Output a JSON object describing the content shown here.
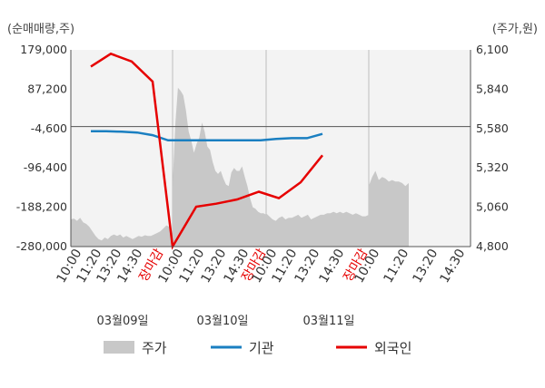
{
  "chart_data": {
    "type": "line",
    "left_axis_unit": "(순매매량,주)",
    "right_axis_unit": "(주가,원)",
    "left_ticks": [
      "179,000",
      "87,200",
      "-4,600",
      "-96,400",
      "-188,200",
      "-280,000"
    ],
    "right_ticks": [
      "6,100",
      "5,840",
      "5,580",
      "5,320",
      "5,060",
      "4,800"
    ],
    "left_range": [
      -280000,
      179000
    ],
    "right_range": [
      4800,
      6100
    ],
    "x_ticks": [
      "10:00",
      "11:20",
      "13:20",
      "14:30",
      "장마감",
      "10:00",
      "11:20",
      "13:20",
      "14:30",
      "장마감",
      "10:00",
      "11:20",
      "13:20",
      "14:30",
      "장마감",
      "10:00",
      "11:20",
      "13:20",
      "14:30"
    ],
    "day_labels": [
      "03월09일",
      "03월10일",
      "03월11일"
    ],
    "series": [
      {
        "name": "주가",
        "kind": "area",
        "axis": "right",
        "color": "#c8c8c8",
        "values": [
          4980,
          4985,
          4970,
          4990,
          4960,
          4950,
          4930,
          4900,
          4870,
          4850,
          4840,
          4860,
          4850,
          4870,
          4880,
          4870,
          4880,
          4860,
          4870,
          4860,
          4850,
          4860,
          4870,
          4865,
          4875,
          4870,
          4870,
          4880,
          4890,
          4900,
          4920,
          4940,
          4930,
          4850,
          5200,
          5600,
          5850,
          5830,
          5800,
          5700,
          5560,
          5500,
          5420,
          5480,
          5520,
          5620,
          5560,
          5460,
          5440,
          5360,
          5300,
          5280,
          5300,
          5250,
          5210,
          5200,
          5290,
          5320,
          5300,
          5300,
          5330,
          5260,
          5200,
          5120,
          5060,
          5050,
          5030,
          5020,
          5020,
          5010,
          5020,
          5000,
          4980,
          4970,
          4990,
          5000,
          4980,
          4990,
          4990,
          5000,
          5010,
          4990,
          5000,
          5010,
          4980,
          4990,
          5000,
          5010,
          5010,
          5020,
          5020,
          5030,
          5020,
          5030,
          5020,
          5030,
          5020,
          5010,
          5020,
          5010,
          5000,
          5000,
          5010,
          5200,
          5260,
          5300,
          5240,
          5260,
          5250,
          5230,
          5240,
          5230,
          5230,
          5220,
          5200,
          5220
        ]
      },
      {
        "name": "기관",
        "kind": "line",
        "axis": "left",
        "color": "#1a7fc1",
        "values": [
          -11000,
          -11000,
          -12000,
          -14000,
          -20000,
          -32000,
          -32000,
          -32000,
          -32000,
          -32000,
          -32000,
          -32000,
          -29000,
          -27000,
          -27000,
          -17000
        ]
      },
      {
        "name": "외국인",
        "kind": "line",
        "axis": "left",
        "color": "#e60000",
        "values": [
          140000,
          170000,
          152000,
          105000,
          -280000,
          -187000,
          -180000,
          -170000,
          -152000,
          -167000,
          -130000,
          -67000
        ]
      }
    ]
  }
}
